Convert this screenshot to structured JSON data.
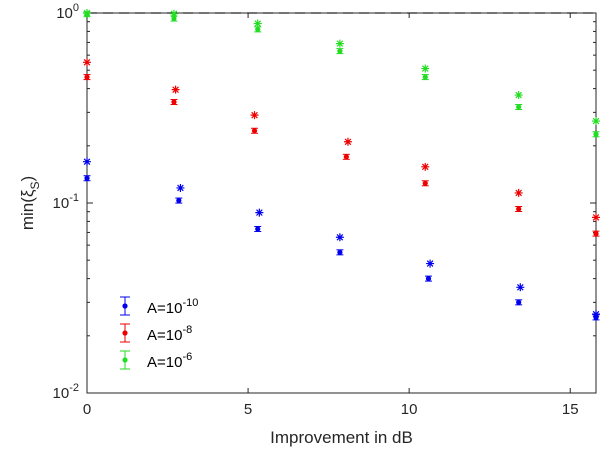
{
  "chart_data": {
    "type": "scatter",
    "xlabel": "Improvement in dB",
    "ylabel": "min(ξ_S)",
    "xlim": [
      0,
      15.8
    ],
    "ylim": [
      0.01,
      1
    ],
    "y_scale": "log",
    "x_ticks": [
      0,
      5,
      10,
      15
    ],
    "x_tick_labels": [
      "0",
      "5",
      "10",
      "15"
    ],
    "y_ticks": [
      0.01,
      0.1,
      1
    ],
    "y_tick_labels": [
      {
        "base": "10",
        "exp": "-2"
      },
      {
        "base": "10",
        "exp": "-1"
      },
      {
        "base": "10",
        "exp": "0"
      }
    ],
    "grid": false,
    "reference_line": {
      "y": 1,
      "style": "dashed"
    },
    "legend": {
      "position": "bottom-left"
    },
    "series": [
      {
        "label_base": "A=10",
        "label_exp": "-10",
        "color": "#0000ee",
        "x_dot": [
          0,
          2.85,
          5.3,
          7.85,
          10.6,
          13.4,
          15.8
        ],
        "dot": [
          0.135,
          0.103,
          0.073,
          0.055,
          0.04,
          0.03,
          0.025
        ],
        "x_star": [
          0,
          2.9,
          5.35,
          7.85,
          10.65,
          13.45,
          15.8
        ],
        "star": [
          0.165,
          0.12,
          0.089,
          0.066,
          0.048,
          0.036,
          0.026
        ]
      },
      {
        "label_base": "A=10",
        "label_exp": "-8",
        "color": "#ee0000",
        "x_dot": [
          0,
          2.7,
          5.2,
          8.05,
          10.5,
          13.4,
          15.8
        ],
        "dot": [
          0.46,
          0.34,
          0.24,
          0.175,
          0.127,
          0.093,
          0.069
        ],
        "x_star": [
          0,
          2.75,
          5.2,
          8.1,
          10.5,
          13.4,
          15.8
        ],
        "star": [
          0.55,
          0.395,
          0.29,
          0.21,
          0.155,
          0.113,
          0.084
        ]
      },
      {
        "label_base": "A=10",
        "label_exp": "-6",
        "color": "#22dd22",
        "x_dot": [
          0,
          2.7,
          5.3,
          7.85,
          10.5,
          13.4,
          15.8
        ],
        "dot": [
          0.985,
          0.935,
          0.82,
          0.63,
          0.46,
          0.32,
          0.23
        ],
        "x_star": [
          0,
          2.7,
          5.3,
          7.85,
          10.5,
          13.4,
          15.8
        ],
        "star": [
          1.0,
          0.99,
          0.88,
          0.69,
          0.51,
          0.37,
          0.27
        ]
      }
    ]
  }
}
